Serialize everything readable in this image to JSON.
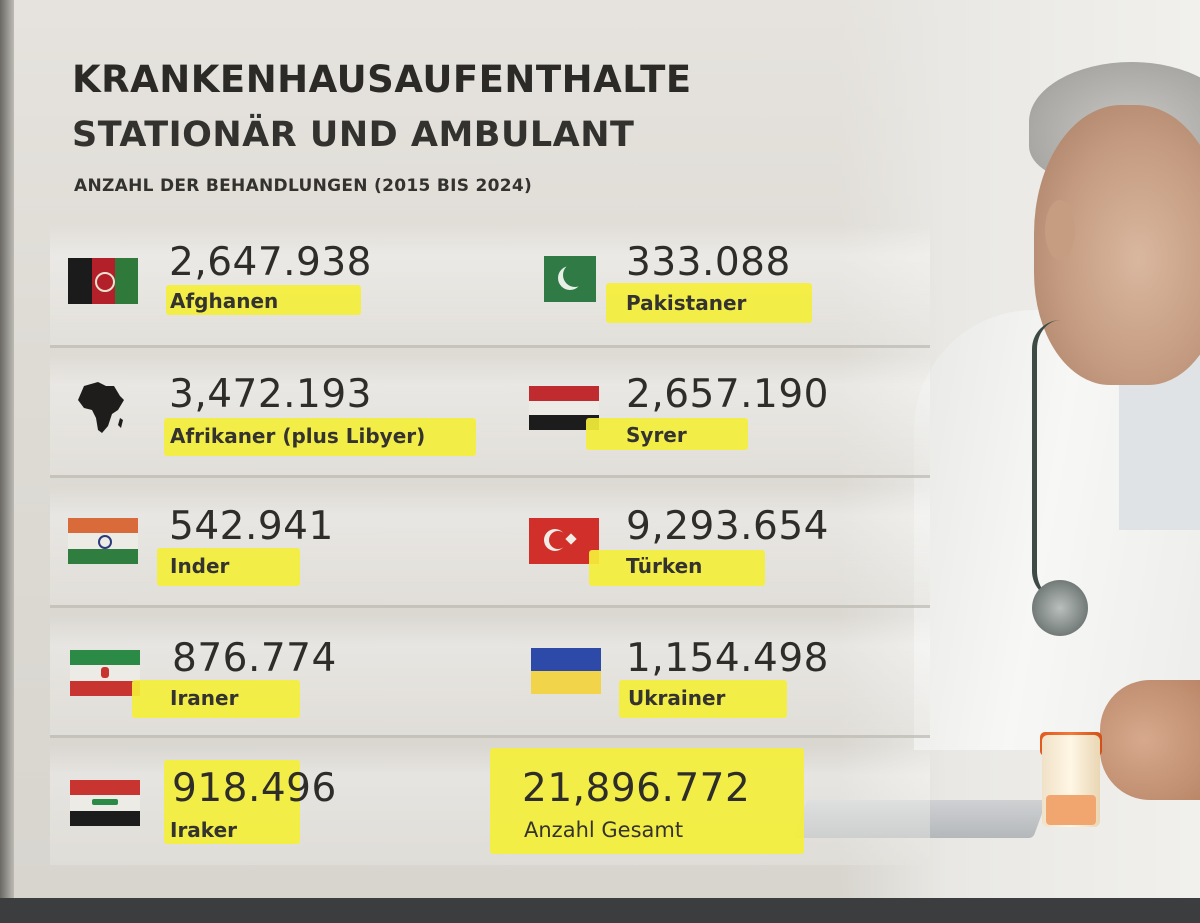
{
  "header": {
    "title": "KRANKENHAUSAUFENTHALTE",
    "subtitle": "STATIONÄR UND AMBULANT",
    "caption": "ANZAHL DER BEHANDLUNGEN (2015 BIS 2024)"
  },
  "entries": [
    {
      "value": "2,647.938",
      "label": "Afghanen",
      "flag": "afghanistan-flag-icon"
    },
    {
      "value": "333.088",
      "label": "Pakistaner",
      "flag": "pakistan-flag-icon"
    },
    {
      "value": "3,472.193",
      "label": "Afrikaner (plus Libyer)",
      "flag": "africa-map-icon"
    },
    {
      "value": "2,657.190",
      "label": "Syrer",
      "flag": "syria-flag-icon"
    },
    {
      "value": "542.941",
      "label": "Inder",
      "flag": "india-flag-icon"
    },
    {
      "value": "9,293.654",
      "label": "Türken",
      "flag": "turkey-flag-icon"
    },
    {
      "value": "876.774",
      "label": "Iraner",
      "flag": "iran-flag-icon"
    },
    {
      "value": "1,154.498",
      "label": "Ukrainer",
      "flag": "ukraine-flag-icon"
    },
    {
      "value": "918.496",
      "label": "Iraker",
      "flag": "iraq-flag-icon"
    }
  ],
  "total": {
    "value": "21,896.772",
    "label": "Anzahl Gesamt"
  },
  "colors": {
    "highlight": "#f4ef3a",
    "text": "#2e2d2a"
  }
}
